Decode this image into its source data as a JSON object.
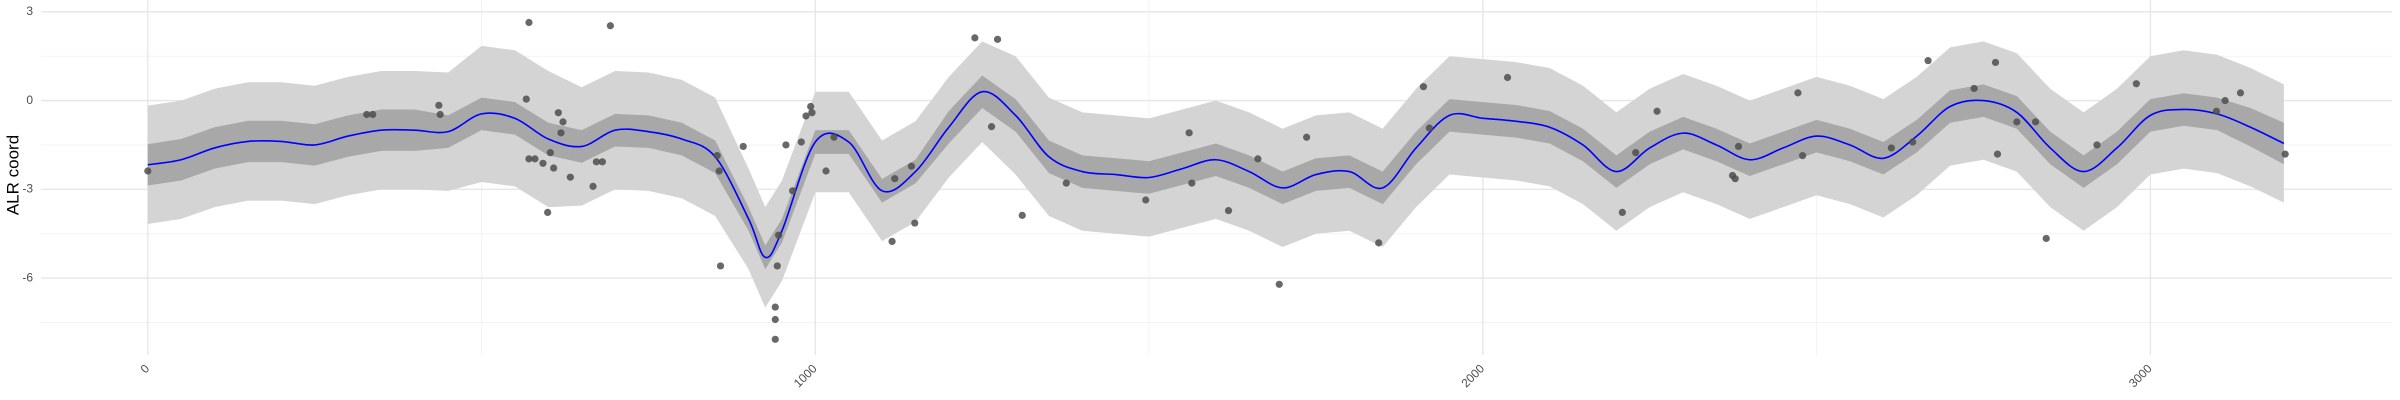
{
  "chart_data": {
    "type": "line",
    "y_label": "ALR coord",
    "x": [
      0,
      50,
      100,
      150,
      200,
      250,
      300,
      350,
      400,
      450,
      500,
      550,
      600,
      650,
      700,
      750,
      800,
      850,
      900,
      925,
      950,
      1000,
      1050,
      1100,
      1150,
      1200,
      1250,
      1300,
      1350,
      1400,
      1450,
      1500,
      1550,
      1600,
      1650,
      1700,
      1750,
      1800,
      1850,
      1900,
      1950,
      2000,
      2050,
      2100,
      2150,
      2200,
      2250,
      2300,
      2350,
      2400,
      2450,
      2500,
      2550,
      2600,
      2650,
      2700,
      2750,
      2800,
      2850,
      2900,
      2950,
      3000,
      3050,
      3100,
      3150,
      3200
    ],
    "line": {
      "color": "#0000ff",
      "values": [
        -2.17,
        -2.0,
        -1.6,
        -1.38,
        -1.38,
        -1.5,
        -1.2,
        -1.0,
        -1.0,
        -1.05,
        -0.45,
        -0.6,
        -1.3,
        -1.55,
        -1.0,
        -1.05,
        -1.3,
        -1.9,
        -4.0,
        -5.3,
        -4.4,
        -1.4,
        -1.4,
        -3.05,
        -2.4,
        -0.9,
        0.3,
        -0.5,
        -1.9,
        -2.4,
        -2.5,
        -2.6,
        -2.3,
        -2.0,
        -2.4,
        -2.95,
        -2.5,
        -2.4,
        -2.95,
        -1.6,
        -0.5,
        -0.6,
        -0.7,
        -0.9,
        -1.5,
        -2.4,
        -1.6,
        -1.1,
        -1.5,
        -2.0,
        -1.6,
        -1.2,
        -1.5,
        -1.95,
        -1.2,
        -0.2,
        0.0,
        -0.4,
        -1.6,
        -2.4,
        -1.6,
        -0.5,
        -0.3,
        -0.45,
        -0.9,
        -1.45
      ]
    },
    "band_50": {
      "color": "#a8a8a8",
      "upper": [
        -1.47,
        -1.3,
        -0.9,
        -0.68,
        -0.68,
        -0.8,
        -0.5,
        -0.3,
        -0.3,
        -0.5,
        0.1,
        -0.05,
        -0.75,
        -1.0,
        -0.45,
        -0.5,
        -0.75,
        -1.35,
        -3.6,
        -4.9,
        -4.0,
        -1.0,
        -1.0,
        -2.65,
        -2.0,
        -0.35,
        0.85,
        0.05,
        -1.35,
        -1.85,
        -1.95,
        -2.05,
        -1.75,
        -1.45,
        -1.85,
        -2.4,
        -1.95,
        -1.85,
        -2.4,
        -1.05,
        0.05,
        -0.05,
        -0.15,
        -0.35,
        -0.95,
        -1.85,
        -1.05,
        -0.55,
        -0.95,
        -1.45,
        -1.05,
        -0.65,
        -0.95,
        -1.4,
        -0.65,
        0.35,
        0.55,
        0.15,
        -1.05,
        -1.85,
        -1.05,
        0.05,
        0.25,
        0.1,
        -0.25,
        -0.75
      ],
      "lower": [
        -2.87,
        -2.7,
        -2.3,
        -2.08,
        -2.08,
        -2.2,
        -1.9,
        -1.7,
        -1.7,
        -1.6,
        -1.0,
        -1.15,
        -1.85,
        -2.1,
        -1.55,
        -1.6,
        -1.85,
        -2.45,
        -4.4,
        -5.7,
        -4.8,
        -1.8,
        -1.8,
        -3.45,
        -2.8,
        -1.45,
        -0.25,
        -1.05,
        -2.45,
        -2.95,
        -3.05,
        -3.15,
        -2.85,
        -2.55,
        -2.95,
        -3.5,
        -3.05,
        -2.95,
        -3.5,
        -2.15,
        -1.05,
        -1.15,
        -1.25,
        -1.45,
        -2.05,
        -2.95,
        -2.15,
        -1.65,
        -2.05,
        -2.55,
        -2.15,
        -1.75,
        -2.05,
        -2.5,
        -1.75,
        -0.75,
        -0.55,
        -0.95,
        -2.15,
        -2.95,
        -2.15,
        -1.05,
        -0.85,
        -1.0,
        -1.55,
        -2.15
      ]
    },
    "band_95": {
      "color": "#d4d4d4",
      "upper": [
        -0.17,
        0.0,
        0.4,
        0.62,
        0.62,
        0.5,
        0.8,
        1.0,
        1.0,
        0.95,
        1.85,
        1.7,
        1.0,
        0.45,
        1.0,
        0.95,
        0.7,
        0.1,
        -2.3,
        -3.6,
        -2.7,
        0.3,
        0.3,
        -1.35,
        -0.7,
        0.8,
        2.0,
        1.5,
        0.1,
        -0.4,
        -0.5,
        -0.6,
        -0.3,
        0.0,
        -0.4,
        -0.95,
        -0.5,
        -0.4,
        -0.95,
        0.4,
        1.5,
        1.4,
        1.3,
        1.1,
        0.5,
        -0.4,
        0.4,
        0.9,
        0.5,
        0.0,
        0.4,
        0.8,
        0.5,
        0.05,
        0.8,
        1.8,
        2.0,
        1.6,
        0.4,
        -0.4,
        0.4,
        1.5,
        1.7,
        1.55,
        1.1,
        0.55
      ],
      "lower": [
        -4.17,
        -4.0,
        -3.6,
        -3.38,
        -3.38,
        -3.5,
        -3.2,
        -3.0,
        -3.0,
        -3.05,
        -2.75,
        -2.9,
        -3.6,
        -3.55,
        -3.0,
        -3.05,
        -3.3,
        -3.9,
        -5.7,
        -7.0,
        -6.1,
        -3.1,
        -3.1,
        -4.75,
        -4.1,
        -2.6,
        -1.4,
        -2.5,
        -3.9,
        -4.4,
        -4.5,
        -4.6,
        -4.3,
        -4.0,
        -4.4,
        -4.95,
        -4.5,
        -4.4,
        -4.95,
        -3.6,
        -2.5,
        -2.6,
        -2.7,
        -2.9,
        -3.5,
        -4.4,
        -3.6,
        -3.1,
        -3.5,
        -4.0,
        -3.6,
        -3.2,
        -3.5,
        -3.95,
        -3.2,
        -2.2,
        -2.0,
        -2.4,
        -3.6,
        -4.4,
        -3.6,
        -2.5,
        -2.3,
        -2.45,
        -2.9,
        -3.45
      ]
    },
    "points": {
      "color": "#4d4d4d",
      "x": [
        0,
        571,
        693,
        567,
        328,
        337,
        436,
        438,
        571,
        580,
        592,
        603,
        608,
        615,
        622,
        619,
        633,
        599,
        667,
        672,
        681,
        853,
        856,
        858,
        892,
        940,
        940,
        940,
        943,
        945,
        956,
        966,
        979,
        986,
        993,
        995,
        1016,
        1028,
        1115,
        1119,
        1144,
        1149,
        1239,
        1273,
        1264,
        1310,
        1376,
        1495,
        1560,
        1564,
        1619,
        1663,
        1695,
        1736,
        1844,
        1911,
        1920,
        2037,
        2209,
        2229,
        2261,
        2374,
        2378,
        2383,
        2472,
        2479,
        2612,
        2644,
        2667,
        2736,
        2768,
        2771,
        2800,
        2828,
        2844,
        2920,
        2979,
        3099,
        3112,
        3135,
        3202
      ],
      "y": [
        -2.38,
        2.64,
        2.53,
        0.05,
        -0.47,
        -0.47,
        -0.16,
        -0.47,
        -1.97,
        -1.97,
        -2.12,
        -1.76,
        -2.28,
        -0.41,
        -0.72,
        -1.09,
        -2.59,
        -3.78,
        -2.9,
        -2.07,
        -2.07,
        -1.86,
        -2.38,
        -5.59,
        -1.55,
        -6.98,
        -7.4,
        -8.07,
        -5.59,
        -4.55,
        -1.5,
        -3.05,
        -1.4,
        -0.52,
        -0.2,
        -0.41,
        -2.38,
        -1.24,
        -4.76,
        -2.64,
        -2.22,
        -4.14,
        2.12,
        2.07,
        -0.88,
        -3.88,
        -2.79,
        -3.36,
        -1.09,
        -2.79,
        -3.72,
        -1.97,
        -6.21,
        -1.24,
        -4.81,
        0.47,
        -0.93,
        0.78,
        -3.78,
        -1.76,
        -0.36,
        -2.53,
        -2.64,
        -1.55,
        0.26,
        -1.86,
        -1.6,
        -1.4,
        1.35,
        0.41,
        1.29,
        -1.81,
        -0.72,
        -0.72,
        -4.66,
        -1.5,
        0.57,
        -0.36,
        0,
        0.26,
        -1.81
      ]
    },
    "xlim": [
      -160,
      3362
    ],
    "ylim": [
      -8.6,
      3.4
    ],
    "xticks": [
      0,
      1000,
      2000,
      3000
    ],
    "yticks": [
      -6,
      -3,
      0,
      3
    ],
    "x_minor_ticks": [
      500,
      1500,
      2500
    ],
    "y_minor_ticks": [
      -7.5,
      -4.5,
      -1.5,
      1.5
    ],
    "grid": true
  }
}
